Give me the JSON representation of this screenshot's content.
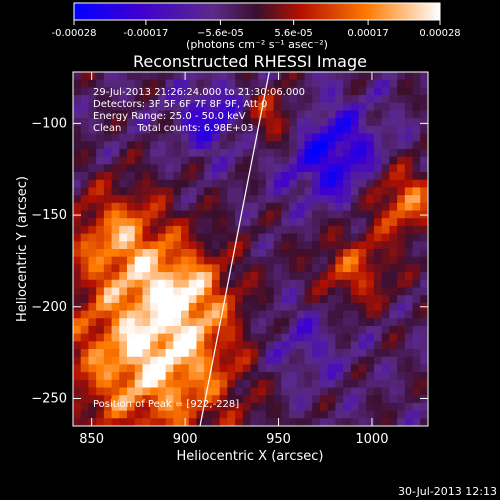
{
  "chart_data": {
    "type": "heatmap",
    "title": "Reconstructed RHESSI Image",
    "xlabel": "Heliocentric X (arcsec)",
    "ylabel": "Heliocentric Y (arcsec)",
    "xlim": [
      840,
      1030
    ],
    "ylim": [
      -265,
      -72
    ],
    "x_ticks": [
      850,
      900,
      950,
      1000
    ],
    "y_ticks": [
      -100,
      -150,
      -200,
      -250
    ],
    "colorbar": {
      "min": -0.00028,
      "max": 0.00028,
      "tick_values": [
        -0.00028,
        -0.00017,
        -5.6e-05,
        5.6e-05,
        0.00017,
        0.00028
      ],
      "tick_labels": [
        "-0.00028",
        "-0.00017",
        "−5.6e-05",
        "5.6e-05",
        "0.00017",
        "0.00028"
      ],
      "unit_label": "(photons cm⁻² s⁻¹ asec⁻²)",
      "colors": [
        "#0000ff",
        "#4400cc",
        "#5b2a8a",
        "#5a1a4a",
        "#cc2200",
        "#ff8800",
        "#ffffff"
      ]
    },
    "annotations": [
      "29-Jul-2013 21:26:24.000 to 21:30:06.000",
      "Detectors: 3F 5F 6F 7F 8F 9F, Att 0",
      "Energy Range: 25.0 - 50.0 keV",
      "Clean     Total counts: 6.98E+03"
    ],
    "peak_label": "Position of Peak = [922,-228]",
    "peak_position": [
      922,
      -228
    ],
    "limb_line": [
      [
        908,
        -265
      ],
      [
        945,
        -72
      ]
    ],
    "grid": false
  },
  "footer": {
    "timestamp": "30-Jul-2013 12:13"
  }
}
